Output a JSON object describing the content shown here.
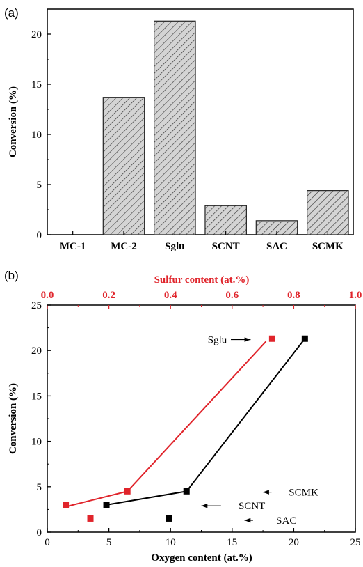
{
  "chart_data": [
    {
      "panel": "(a)",
      "type": "bar",
      "ylabel": "Conversion (%)",
      "ylim": [
        0,
        22.5
      ],
      "yticks": [
        "0",
        "5",
        "10",
        "15",
        "20"
      ],
      "categories": [
        "MC-1",
        "MC-2",
        "Sglu",
        "SCNT",
        "SAC",
        "SCMK"
      ],
      "values": [
        0,
        13.7,
        21.3,
        2.9,
        1.4,
        4.4
      ],
      "bar_fill": "hatched-grey"
    },
    {
      "panel": "(b)",
      "type": "scatter",
      "ylabel": "Conversion (%)",
      "xlabel": "Oxygen content (at.%)",
      "x2label": "Sulfur content (at.%)",
      "xlim": [
        0,
        25
      ],
      "x2lim": [
        0.0,
        1.0
      ],
      "ylim": [
        0,
        25
      ],
      "xticks": [
        "0",
        "5",
        "10",
        "15",
        "20",
        "25"
      ],
      "x2ticks": [
        "0.0",
        "0.2",
        "0.4",
        "0.6",
        "0.8",
        "1.0"
      ],
      "yticks": [
        "0",
        "5",
        "10",
        "15",
        "20",
        "25"
      ],
      "series": [
        {
          "axis": "oxygen",
          "color": "#000000",
          "points": [
            [
              4.8,
              3.0
            ],
            [
              11.3,
              4.5
            ],
            [
              20.9,
              21.3
            ],
            [
              9.9,
              1.5
            ]
          ],
          "fit_line": [
            [
              4.8,
              3.0
            ],
            [
              11.3,
              4.5
            ],
            [
              20.9,
              21.3
            ]
          ]
        },
        {
          "axis": "sulfur",
          "color": "#e0242b",
          "points": [
            [
              0.06,
              3.0
            ],
            [
              0.26,
              4.5
            ],
            [
              0.73,
              21.3
            ],
            [
              0.14,
              1.5
            ]
          ],
          "fit_line": [
            [
              0.06,
              2.8
            ],
            [
              0.26,
              4.5
            ],
            [
              0.71,
              21.0
            ]
          ]
        }
      ],
      "annotations": [
        {
          "text": "Sglu",
          "x": 13.8,
          "y": 21.2,
          "arrow_to_x": 16.5,
          "arrow_to_y": 21.2,
          "arrow_from_x": 14.9
        },
        {
          "text": "SCMK",
          "x": 20.8,
          "y": 4.4,
          "arrow_from_x": 20.5,
          "arrow_to_x": 17.5
        },
        {
          "text": "SCNT",
          "x": 16.6,
          "y": 2.9,
          "arrow_from_x": 16.4,
          "arrow_to_x": 12.5
        },
        {
          "text": "SAC",
          "x": 19.4,
          "y": 1.3,
          "arrow_from_x": 19.0,
          "arrow_to_x": 16.0
        }
      ]
    }
  ]
}
